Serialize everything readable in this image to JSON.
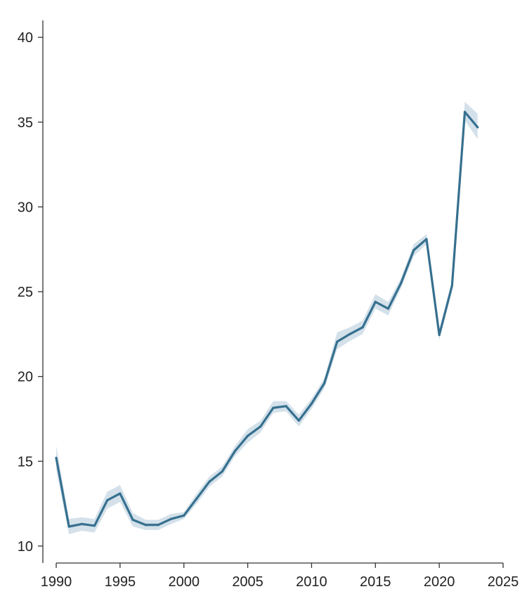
{
  "chart_data": {
    "type": "line",
    "title": "",
    "xlabel": "",
    "ylabel": "",
    "xlim": [
      1990,
      2025
    ],
    "ylim": [
      9,
      41
    ],
    "x_ticks": [
      1990,
      1995,
      2000,
      2005,
      2010,
      2015,
      2020,
      2025
    ],
    "y_ticks": [
      10,
      15,
      20,
      25,
      30,
      35,
      40
    ],
    "grid": false,
    "colors": {
      "line": "#36708f",
      "band": "#c5d7e3"
    },
    "series": [
      {
        "x": [
          1990,
          1991,
          1992,
          1993,
          1994,
          1995,
          1996,
          1997,
          1998,
          1999,
          2000,
          2001,
          2002,
          2003,
          2004,
          2005,
          2006,
          2007,
          2008,
          2009,
          2010,
          2011,
          2012,
          2013,
          2014,
          2015,
          2016,
          2017,
          2018,
          2019,
          2020,
          2021,
          2022,
          2023
        ],
        "values": [
          15.2,
          11.15,
          11.3,
          11.2,
          12.7,
          13.1,
          11.55,
          11.25,
          11.25,
          11.6,
          11.8,
          12.8,
          13.8,
          14.4,
          15.6,
          16.5,
          17.05,
          18.15,
          18.25,
          17.4,
          18.4,
          19.6,
          22.05,
          22.5,
          22.9,
          24.4,
          24.0,
          25.5,
          27.45,
          28.1,
          22.45,
          25.35,
          35.6,
          34.7
        ],
        "lower": [
          14.5,
          10.7,
          10.9,
          10.8,
          12.2,
          12.6,
          11.15,
          10.95,
          10.95,
          11.3,
          11.6,
          12.5,
          13.5,
          14.1,
          15.3,
          16.1,
          16.7,
          17.85,
          17.95,
          17.05,
          18.1,
          19.3,
          21.6,
          22.1,
          22.5,
          24.0,
          23.6,
          25.2,
          27.1,
          27.8,
          22.15,
          25.05,
          35.1,
          34.0
        ],
        "upper": [
          15.9,
          11.6,
          11.7,
          11.6,
          13.2,
          13.6,
          11.95,
          11.55,
          11.55,
          11.9,
          12.0,
          13.1,
          14.1,
          14.7,
          15.9,
          16.9,
          17.4,
          18.55,
          18.55,
          17.75,
          18.7,
          19.9,
          22.6,
          22.9,
          23.3,
          24.85,
          24.4,
          25.8,
          27.8,
          28.4,
          22.75,
          25.65,
          36.2,
          35.5
        ]
      }
    ]
  }
}
